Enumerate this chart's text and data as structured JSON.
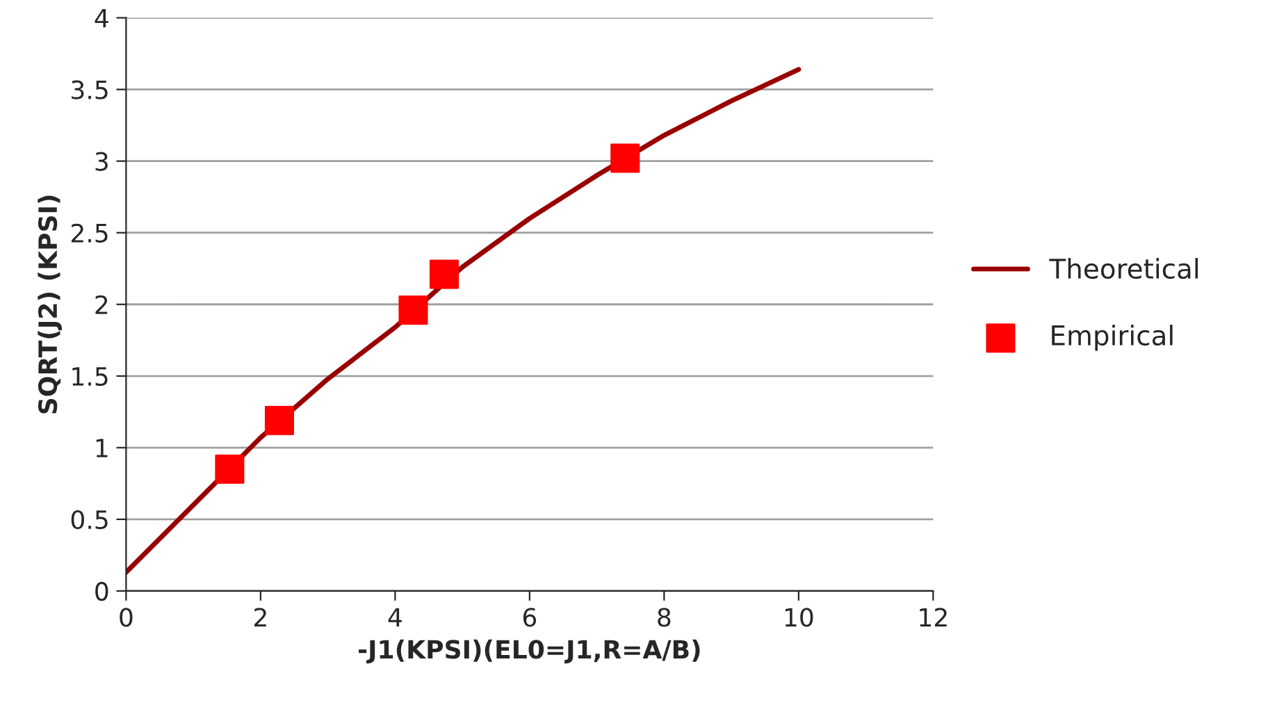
{
  "chart_data": {
    "type": "line",
    "xlabel": "-J1(KPSI)(EL0=J1,R=A/B)",
    "ylabel": "SQRT(J2) (KPSI)",
    "xlim": [
      0,
      12
    ],
    "xticks": [
      0,
      2,
      4,
      6,
      8,
      10,
      12
    ],
    "ylim": [
      0,
      4
    ],
    "yticks": [
      0,
      0.5,
      1,
      1.5,
      2,
      2.5,
      3,
      3.5,
      4
    ],
    "grid": "y",
    "legend": "right",
    "series": [
      {
        "name": "Theoretical",
        "color": "#990000",
        "x": [
          0,
          1,
          2,
          3,
          4,
          5,
          6,
          7,
          8,
          9,
          10
        ],
        "values": [
          0.13,
          0.6,
          1.07,
          1.48,
          1.84,
          2.26,
          2.6,
          2.9,
          3.18,
          3.42,
          3.64
        ]
      },
      {
        "name": "Empirical",
        "type": "scatter",
        "marker": "square",
        "color": "#ff0000",
        "x": [
          1.54,
          2.28,
          4.27,
          4.73,
          7.42
        ],
        "values": [
          0.85,
          1.19,
          1.96,
          2.21,
          3.02
        ]
      }
    ]
  }
}
